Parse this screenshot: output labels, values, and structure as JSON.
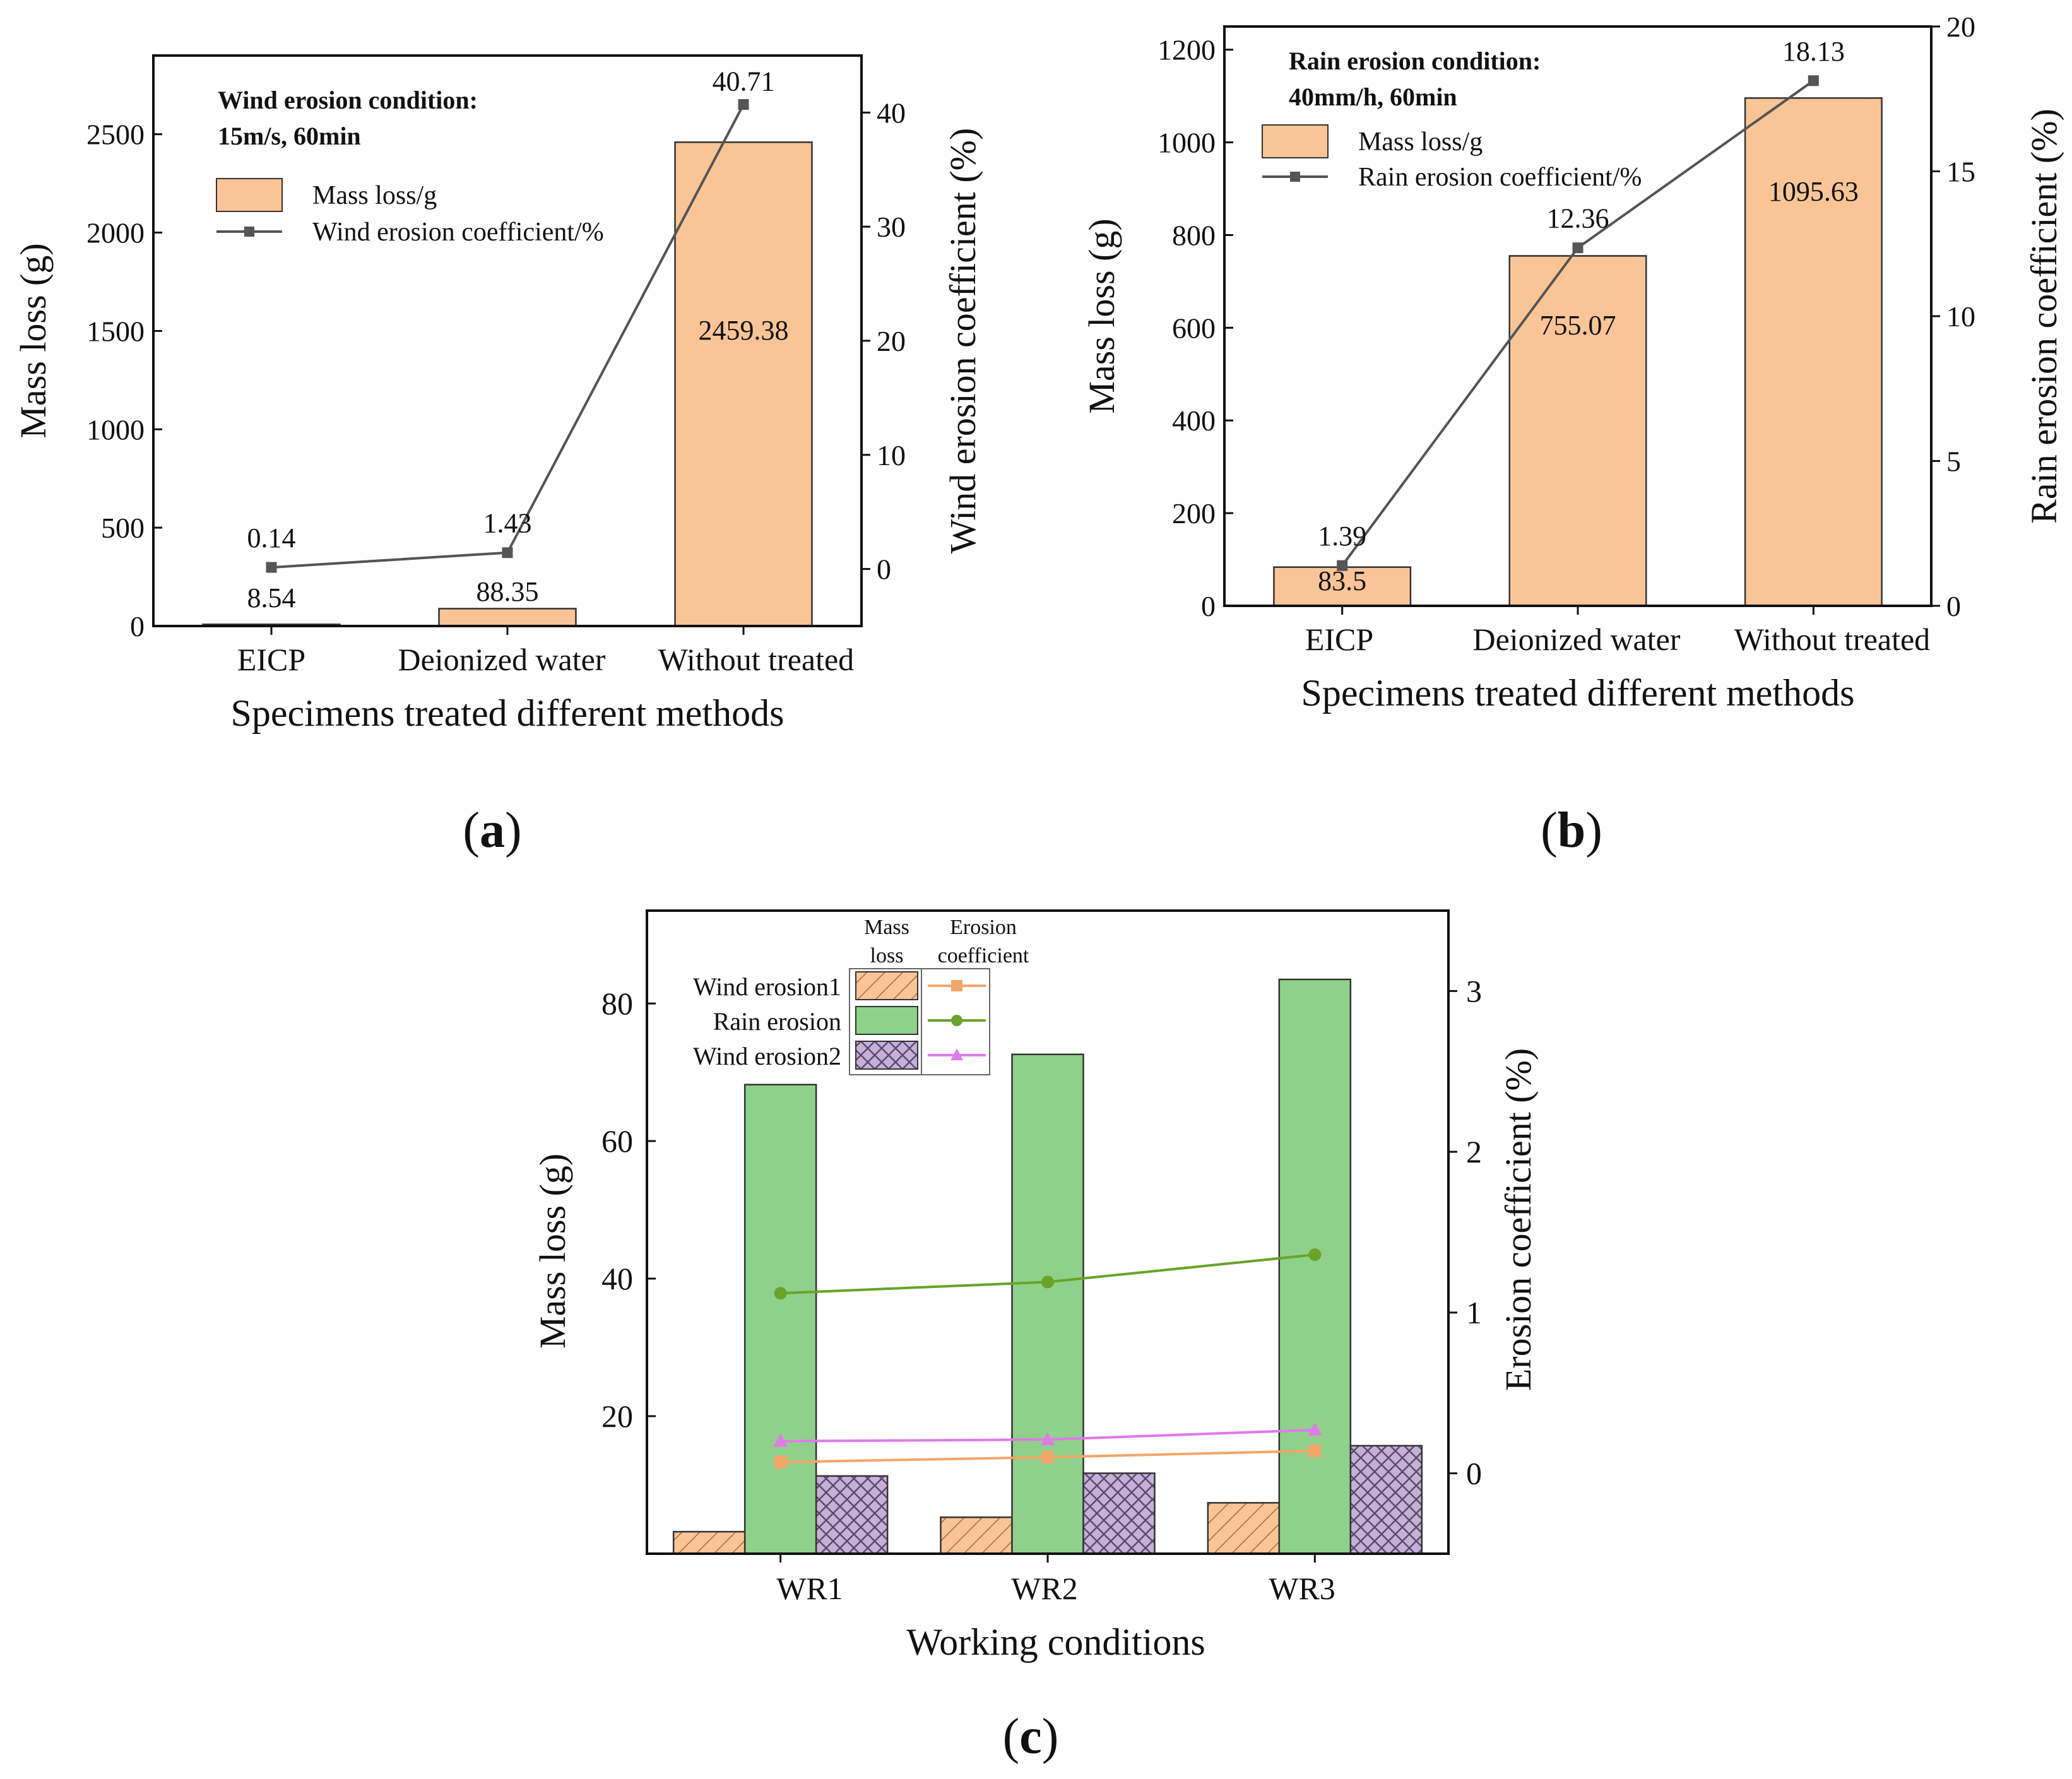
{
  "chart_data": [
    {
      "type": "bar",
      "id": "a",
      "panel_label": "(a)",
      "panel_letter": "a",
      "title_line1": "Wind erosion condition:",
      "title_line2": "15m/s, 60min",
      "xlabel": "Specimens treated different methods",
      "ylabel": "Mass loss (g)",
      "y2label": "Wind erosion coefficient (%)",
      "categories": [
        "EICP",
        "Deionized water",
        "Without treated"
      ],
      "ylim": [
        0,
        2900
      ],
      "yticks": [
        0,
        500,
        1000,
        1500,
        2000,
        2500
      ],
      "y2lim": [
        -5,
        45
      ],
      "y2ticks": [
        0,
        10,
        20,
        30,
        40
      ],
      "bar_series": {
        "name": "Mass loss/g",
        "values": [
          8.54,
          88.35,
          2459.38
        ],
        "labels": [
          "8.54",
          "88.35",
          "2459.38"
        ]
      },
      "line_series": {
        "name": "Wind erosion coefficient/%",
        "values": [
          0.14,
          1.43,
          40.71
        ],
        "labels": [
          "0.14",
          "1.43",
          "40.71"
        ]
      },
      "colors": {
        "bar": "#f9c596",
        "line": "#555555"
      }
    },
    {
      "type": "bar",
      "id": "b",
      "panel_label": "(b)",
      "panel_letter": "b",
      "title_line1": "Rain erosion condition:",
      "title_line2": "40mm/h, 60min",
      "xlabel": "Specimens treated different methods",
      "ylabel": "Mass loss (g)",
      "y2label": "Rain erosion coefficient (%)",
      "categories": [
        "EICP",
        "Deionized water",
        "Without treated"
      ],
      "ylim": [
        0,
        1250
      ],
      "yticks": [
        0,
        200,
        400,
        600,
        800,
        1000,
        1200
      ],
      "y2lim": [
        0,
        20
      ],
      "y2ticks": [
        0,
        5,
        10,
        15,
        20
      ],
      "bar_series": {
        "name": "Mass loss/g",
        "values": [
          83.5,
          755.07,
          1095.63
        ],
        "labels": [
          "83.5",
          "755.07",
          "1095.63"
        ]
      },
      "line_series": {
        "name": "Rain erosion coefficient/%",
        "values": [
          1.39,
          12.36,
          18.13
        ],
        "labels": [
          "1.39",
          "12.36",
          "18.13"
        ]
      },
      "colors": {
        "bar": "#f9c596",
        "line": "#555555"
      }
    },
    {
      "type": "bar",
      "id": "c",
      "panel_label": "(c)",
      "panel_letter": "c",
      "xlabel": "Working conditions",
      "ylabel": "Mass loss (g)",
      "y2label": "Erosion coefficient (%)",
      "categories": [
        "WR1",
        "WR2",
        "WR3"
      ],
      "ylim": [
        0,
        93.5
      ],
      "yticks": [
        20,
        40,
        60,
        80
      ],
      "y2lim": [
        -0.5,
        3.5
      ],
      "y2ticks": [
        0,
        1,
        2,
        3
      ],
      "legend_header_bar": [
        "Mass",
        "loss"
      ],
      "legend_header_line": [
        "Erosion",
        "coefficient"
      ],
      "series": [
        {
          "name": "Wind erosion1",
          "bar_values": [
            3.2,
            5.3,
            7.4
          ],
          "line_values": [
            0.07,
            0.1,
            0.14
          ],
          "color": "#f4a56a",
          "marker": "square",
          "pattern": "hatch"
        },
        {
          "name": "Rain erosion",
          "bar_values": [
            68.2,
            72.6,
            83.5
          ],
          "line_values": [
            1.12,
            1.19,
            1.36
          ],
          "color": "#8fd18a",
          "line_color": "#6aa329",
          "marker": "circle",
          "pattern": "solid"
        },
        {
          "name": "Wind erosion2",
          "bar_values": [
            11.3,
            11.7,
            15.7
          ],
          "line_values": [
            0.2,
            0.21,
            0.27
          ],
          "color": "#b9a1cf",
          "line_color": "#e07aeb",
          "marker": "triangle",
          "pattern": "crosshatch"
        }
      ]
    }
  ]
}
